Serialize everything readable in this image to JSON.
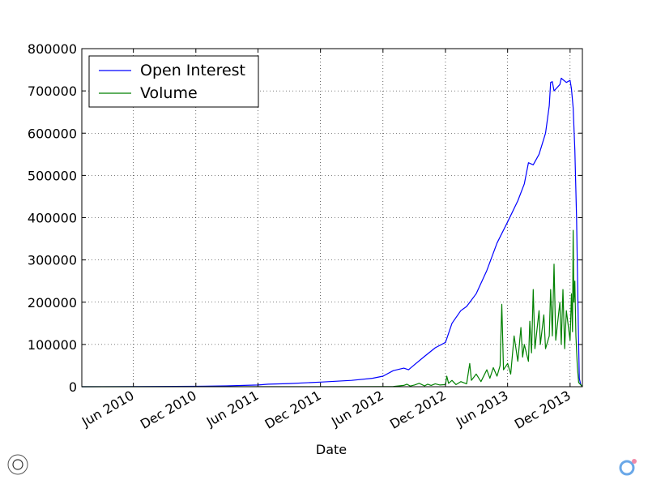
{
  "chart_data": {
    "type": "line",
    "xlabel": "Date",
    "ylabel": "",
    "title": "",
    "xlim": [
      "2010-01-01",
      "2014-01-06"
    ],
    "ylim": [
      0,
      800000
    ],
    "grid": true,
    "legend_position": "top-left",
    "y_ticks": [
      0,
      100000,
      200000,
      300000,
      400000,
      500000,
      600000,
      700000,
      800000
    ],
    "y_tick_labels": [
      "0",
      "100000",
      "200000",
      "300000",
      "400000",
      "500000",
      "600000",
      "700000",
      "800000"
    ],
    "x_ticks": [
      "2010-06-01",
      "2010-12-01",
      "2011-06-01",
      "2011-12-01",
      "2012-06-01",
      "2012-12-01",
      "2013-06-01",
      "2013-12-01"
    ],
    "x_tick_labels": [
      "Jun 2010",
      "Dec 2010",
      "Jun 2011",
      "Dec 2011",
      "Jun 2012",
      "Dec 2012",
      "Jun 2013",
      "Dec 2013"
    ],
    "series": [
      {
        "name": "Open Interest",
        "color": "#0000ff",
        "points": [
          [
            "2010-01-01",
            0
          ],
          [
            "2010-06-01",
            300
          ],
          [
            "2010-12-01",
            1000
          ],
          [
            "2011-03-01",
            2000
          ],
          [
            "2011-06-01",
            4000
          ],
          [
            "2011-07-01",
            6000
          ],
          [
            "2011-09-01",
            7500
          ],
          [
            "2011-12-01",
            11000
          ],
          [
            "2012-03-01",
            15000
          ],
          [
            "2012-05-01",
            20000
          ],
          [
            "2012-06-01",
            25000
          ],
          [
            "2012-07-01",
            38000
          ],
          [
            "2012-08-01",
            44000
          ],
          [
            "2012-08-15",
            40000
          ],
          [
            "2012-09-01",
            52000
          ],
          [
            "2012-10-01",
            72000
          ],
          [
            "2012-11-01",
            92000
          ],
          [
            "2012-12-01",
            105000
          ],
          [
            "2012-12-20",
            150000
          ],
          [
            "2013-01-15",
            180000
          ],
          [
            "2013-02-01",
            190000
          ],
          [
            "2013-03-01",
            220000
          ],
          [
            "2013-04-01",
            275000
          ],
          [
            "2013-05-01",
            340000
          ],
          [
            "2013-06-01",
            390000
          ],
          [
            "2013-07-01",
            440000
          ],
          [
            "2013-07-20",
            480000
          ],
          [
            "2013-08-01",
            530000
          ],
          [
            "2013-08-15",
            525000
          ],
          [
            "2013-09-01",
            550000
          ],
          [
            "2013-09-20",
            600000
          ],
          [
            "2013-10-01",
            665000
          ],
          [
            "2013-10-05",
            720000
          ],
          [
            "2013-10-10",
            722000
          ],
          [
            "2013-10-15",
            700000
          ],
          [
            "2013-11-01",
            715000
          ],
          [
            "2013-11-05",
            730000
          ],
          [
            "2013-11-20",
            720000
          ],
          [
            "2013-12-01",
            725000
          ],
          [
            "2013-12-05",
            705000
          ],
          [
            "2013-12-10",
            660000
          ],
          [
            "2013-12-15",
            560000
          ],
          [
            "2013-12-20",
            400000
          ],
          [
            "2013-12-25",
            150000
          ],
          [
            "2013-12-28",
            20000
          ],
          [
            "2014-01-01",
            5000
          ],
          [
            "2014-01-06",
            0
          ]
        ]
      },
      {
        "name": "Volume",
        "color": "#008000",
        "points": [
          [
            "2010-01-01",
            0
          ],
          [
            "2012-06-01",
            200
          ],
          [
            "2012-07-01",
            500
          ],
          [
            "2012-08-01",
            3000
          ],
          [
            "2012-08-10",
            6000
          ],
          [
            "2012-08-20",
            1500
          ],
          [
            "2012-09-01",
            4000
          ],
          [
            "2012-09-15",
            8000
          ],
          [
            "2012-10-01",
            2000
          ],
          [
            "2012-10-10",
            6000
          ],
          [
            "2012-10-20",
            3000
          ],
          [
            "2012-11-01",
            7000
          ],
          [
            "2012-11-15",
            4000
          ],
          [
            "2012-12-01",
            5000
          ],
          [
            "2012-12-05",
            25000
          ],
          [
            "2012-12-10",
            8000
          ],
          [
            "2012-12-20",
            15000
          ],
          [
            "2013-01-01",
            5000
          ],
          [
            "2013-01-15",
            12000
          ],
          [
            "2013-02-01",
            7000
          ],
          [
            "2013-02-10",
            55000
          ],
          [
            "2013-02-15",
            15000
          ],
          [
            "2013-03-01",
            30000
          ],
          [
            "2013-03-15",
            12000
          ],
          [
            "2013-04-01",
            40000
          ],
          [
            "2013-04-10",
            20000
          ],
          [
            "2013-04-20",
            45000
          ],
          [
            "2013-05-01",
            25000
          ],
          [
            "2013-05-10",
            50000
          ],
          [
            "2013-05-15",
            195000
          ],
          [
            "2013-05-20",
            40000
          ],
          [
            "2013-06-01",
            55000
          ],
          [
            "2013-06-10",
            30000
          ],
          [
            "2013-06-20",
            120000
          ],
          [
            "2013-07-01",
            60000
          ],
          [
            "2013-07-10",
            140000
          ],
          [
            "2013-07-15",
            70000
          ],
          [
            "2013-07-20",
            100000
          ],
          [
            "2013-08-01",
            60000
          ],
          [
            "2013-08-05",
            155000
          ],
          [
            "2013-08-10",
            80000
          ],
          [
            "2013-08-15",
            230000
          ],
          [
            "2013-08-20",
            90000
          ],
          [
            "2013-09-01",
            180000
          ],
          [
            "2013-09-05",
            100000
          ],
          [
            "2013-09-15",
            170000
          ],
          [
            "2013-09-20",
            90000
          ],
          [
            "2013-10-01",
            120000
          ],
          [
            "2013-10-05",
            230000
          ],
          [
            "2013-10-10",
            120000
          ],
          [
            "2013-10-15",
            290000
          ],
          [
            "2013-10-20",
            110000
          ],
          [
            "2013-11-01",
            200000
          ],
          [
            "2013-11-05",
            100000
          ],
          [
            "2013-11-10",
            230000
          ],
          [
            "2013-11-15",
            90000
          ],
          [
            "2013-11-20",
            180000
          ],
          [
            "2013-12-01",
            110000
          ],
          [
            "2013-12-05",
            220000
          ],
          [
            "2013-12-08",
            130000
          ],
          [
            "2013-12-10",
            370000
          ],
          [
            "2013-12-12",
            200000
          ],
          [
            "2013-12-15",
            250000
          ],
          [
            "2013-12-18",
            120000
          ],
          [
            "2013-12-22",
            50000
          ],
          [
            "2013-12-26",
            10000
          ],
          [
            "2014-01-06",
            0
          ]
        ]
      }
    ]
  }
}
